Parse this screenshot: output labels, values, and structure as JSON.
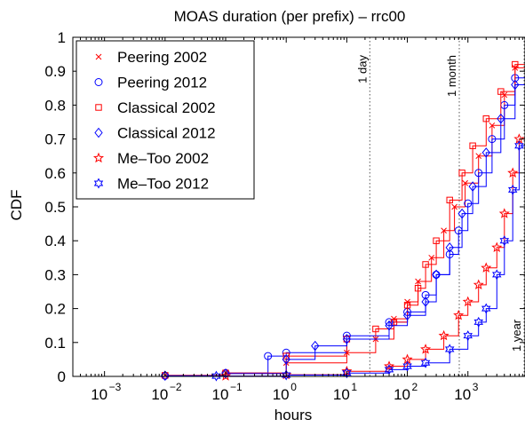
{
  "chart_data": {
    "type": "line",
    "title": "MOAS duration (per prefix) – rrc00",
    "xlabel": "hours",
    "ylabel": "CDF",
    "x_scale": "log",
    "xlim": [
      0.0003,
      8760
    ],
    "ylim": [
      0,
      1
    ],
    "x_ticks": [
      0.001,
      0.01,
      0.1,
      1,
      10,
      100,
      1000
    ],
    "x_tick_labels": [
      {
        "base": "10",
        "exp": "−3"
      },
      {
        "base": "10",
        "exp": "−2"
      },
      {
        "base": "10",
        "exp": "−1"
      },
      {
        "base": "10",
        "exp": "0"
      },
      {
        "base": "10",
        "exp": "1"
      },
      {
        "base": "10",
        "exp": "2"
      },
      {
        "base": "10",
        "exp": "3"
      }
    ],
    "y_ticks": [
      0,
      0.1,
      0.2,
      0.3,
      0.4,
      0.5,
      0.6,
      0.7,
      0.8,
      0.9,
      1
    ],
    "y_tick_labels": [
      "0",
      "0.1",
      "0.2",
      "0.3",
      "0.4",
      "0.5",
      "0.6",
      "0.7",
      "0.8",
      "0.9",
      "1"
    ],
    "grid": false,
    "legend_position": "top-left",
    "reference_lines": [
      {
        "label": "1 day",
        "x": 24
      },
      {
        "label": "1 month",
        "x": 720
      },
      {
        "label": "1 year",
        "x": 8760
      }
    ],
    "series": [
      {
        "name": "Peering 2002",
        "color": "#ff0000",
        "marker": "x",
        "x": [
          0.0003,
          0.01,
          0.1,
          1,
          10,
          30,
          60,
          100,
          150,
          250,
          400,
          600,
          900,
          1500,
          2500,
          4000,
          6000,
          8760
        ],
        "y": [
          0,
          0.003,
          0.01,
          0.04,
          0.07,
          0.11,
          0.17,
          0.22,
          0.28,
          0.35,
          0.43,
          0.5,
          0.57,
          0.65,
          0.74,
          0.83,
          0.91,
          0.94
        ]
      },
      {
        "name": "Peering 2012",
        "color": "#0000ff",
        "marker": "o",
        "x": [
          0.0003,
          0.01,
          0.1,
          0.5,
          1,
          10,
          50,
          100,
          200,
          300,
          500,
          700,
          1000,
          1500,
          2500,
          4000,
          6000,
          8760
        ],
        "y": [
          0,
          0.002,
          0.01,
          0.06,
          0.07,
          0.12,
          0.16,
          0.19,
          0.24,
          0.3,
          0.36,
          0.43,
          0.51,
          0.6,
          0.7,
          0.8,
          0.88,
          0.91
        ]
      },
      {
        "name": "Classical 2002",
        "color": "#ff0000",
        "marker": "square",
        "x": [
          0.0003,
          0.01,
          0.1,
          1,
          10,
          30,
          60,
          100,
          150,
          200,
          300,
          500,
          800,
          1200,
          2000,
          3500,
          6000,
          8760
        ],
        "y": [
          0,
          0.003,
          0.01,
          0.06,
          0.11,
          0.14,
          0.16,
          0.21,
          0.26,
          0.33,
          0.4,
          0.52,
          0.6,
          0.68,
          0.76,
          0.84,
          0.92,
          0.96
        ]
      },
      {
        "name": "Classical 2012",
        "color": "#0000ff",
        "marker": "diamond",
        "x": [
          0.0003,
          0.01,
          0.1,
          1,
          3,
          10,
          50,
          100,
          200,
          300,
          500,
          800,
          1200,
          2000,
          3500,
          6000,
          8760
        ],
        "y": [
          0,
          0.002,
          0.008,
          0.05,
          0.09,
          0.11,
          0.15,
          0.18,
          0.22,
          0.3,
          0.38,
          0.48,
          0.56,
          0.66,
          0.76,
          0.86,
          0.9
        ]
      },
      {
        "name": "Me–Too 2002",
        "color": "#ff0000",
        "marker": "star",
        "x": [
          0.0003,
          0.1,
          1,
          10,
          50,
          100,
          200,
          400,
          700,
          1000,
          1500,
          2000,
          3000,
          4000,
          5500,
          7000,
          8760
        ],
        "y": [
          0,
          0.001,
          0.005,
          0.015,
          0.03,
          0.05,
          0.08,
          0.12,
          0.18,
          0.22,
          0.27,
          0.32,
          0.38,
          0.48,
          0.6,
          0.7,
          0.75
        ]
      },
      {
        "name": "Me–Too 2012",
        "color": "#0000ff",
        "marker": "hexagram",
        "x": [
          0.0003,
          0.07,
          1,
          10,
          50,
          100,
          200,
          500,
          1000,
          1500,
          2000,
          3000,
          4000,
          5500,
          7000,
          8760
        ],
        "y": [
          0,
          0.001,
          0.004,
          0.01,
          0.02,
          0.03,
          0.04,
          0.08,
          0.12,
          0.16,
          0.2,
          0.3,
          0.4,
          0.55,
          0.68,
          0.72
        ]
      }
    ]
  }
}
